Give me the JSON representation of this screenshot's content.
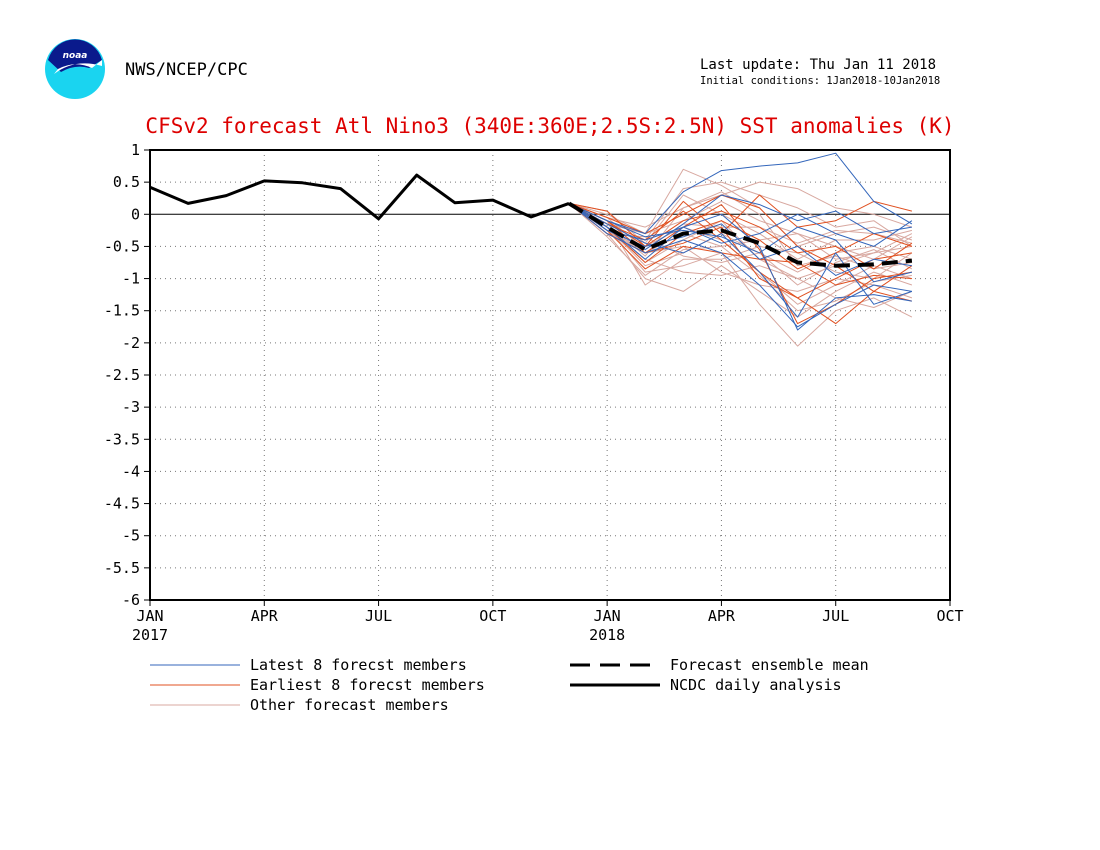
{
  "header": {
    "org": "NWS/NCEP/CPC",
    "last_update": "Last update: Thu Jan 11 2018",
    "initial_conditions": "Initial conditions: 1Jan2018-10Jan2018",
    "logo_text": "noaa"
  },
  "chart_data": {
    "type": "line",
    "title": "CFSv2 forecast Atl Nino3 (340E:360E;2.5S:2.5N) SST anomalies (K)",
    "xlabel": "",
    "ylabel": "",
    "ylim": [
      -6,
      1
    ],
    "yticks": [
      1,
      0.5,
      0,
      -0.5,
      -1,
      -1.5,
      -2,
      -2.5,
      -3,
      -3.5,
      -4,
      -4.5,
      -5,
      -5.5,
      -6
    ],
    "xlim": [
      "2017-01",
      "2018-10"
    ],
    "xticks": [
      {
        "label": "JAN",
        "sublabel": "2017",
        "month": 0
      },
      {
        "label": "APR",
        "sublabel": "",
        "month": 3
      },
      {
        "label": "JUL",
        "sublabel": "",
        "month": 6
      },
      {
        "label": "OCT",
        "sublabel": "",
        "month": 9
      },
      {
        "label": "JAN",
        "sublabel": "2018",
        "month": 12
      },
      {
        "label": "APR",
        "sublabel": "",
        "month": 15
      },
      {
        "label": "JUL",
        "sublabel": "",
        "month": 18
      },
      {
        "label": "OCT",
        "sublabel": "",
        "month": 21
      }
    ],
    "grid": true,
    "zero_line": true,
    "colors": {
      "latest": "#3366bb",
      "earliest": "#e05020",
      "other": "#d8a8a0",
      "mean": "#000000",
      "analysis": "#000000"
    },
    "analysis": {
      "name": "NCDC daily analysis",
      "points": [
        [
          0,
          0.42
        ],
        [
          1,
          0.17
        ],
        [
          2,
          0.29
        ],
        [
          3,
          0.52
        ],
        [
          4,
          0.49
        ],
        [
          5,
          0.4
        ],
        [
          6,
          -0.07
        ],
        [
          7,
          0.61
        ],
        [
          8,
          0.18
        ],
        [
          9,
          0.22
        ],
        [
          10,
          -0.04
        ],
        [
          11,
          0.17
        ]
      ]
    },
    "ensemble_mean": {
      "name": "Forecast ensemble mean",
      "points": [
        [
          11,
          0.17
        ],
        [
          12,
          -0.2
        ],
        [
          13,
          -0.55
        ],
        [
          14,
          -0.3
        ],
        [
          15,
          -0.25
        ],
        [
          16,
          -0.45
        ],
        [
          17,
          -0.75
        ],
        [
          18,
          -0.8
        ],
        [
          19,
          -0.78
        ],
        [
          20,
          -0.72
        ]
      ]
    },
    "latest_members": {
      "name": "Latest 8 forecst members",
      "start_month": 11,
      "values": [
        [
          0.17,
          -0.1,
          -0.3,
          0.35,
          0.68,
          0.75,
          0.8,
          0.95,
          0.2,
          -0.15
        ],
        [
          0.17,
          -0.2,
          -0.55,
          -0.15,
          0.3,
          0.15,
          -0.1,
          0.05,
          -0.3,
          -0.2
        ],
        [
          0.17,
          -0.3,
          -0.6,
          -0.4,
          -0.6,
          -1.1,
          -1.75,
          -1.4,
          -1.1,
          -1.2
        ],
        [
          0.17,
          -0.25,
          -0.4,
          -0.2,
          0.0,
          -0.5,
          -1.8,
          -1.3,
          -1.25,
          -1.35
        ],
        [
          0.17,
          -0.15,
          -0.45,
          -0.6,
          -0.3,
          -0.9,
          -1.6,
          -0.6,
          -1.4,
          -1.2
        ],
        [
          0.17,
          -0.2,
          -0.7,
          -0.2,
          -0.45,
          -0.3,
          0.0,
          -0.3,
          -0.5,
          -0.1
        ],
        [
          0.17,
          -0.25,
          -0.5,
          -0.35,
          -0.15,
          -0.7,
          -0.5,
          -0.95,
          -0.7,
          -0.8
        ],
        [
          0.17,
          -0.1,
          -0.35,
          -0.25,
          -0.35,
          -0.6,
          -0.2,
          -0.4,
          -1.05,
          -0.9
        ]
      ]
    },
    "earliest_members": {
      "name": "Earliest 8 forecst members",
      "start_month": 11,
      "values": [
        [
          0.17,
          0.05,
          -0.5,
          0.2,
          -0.3,
          0.3,
          -0.2,
          -0.1,
          0.2,
          0.05
        ],
        [
          0.17,
          -0.1,
          -0.6,
          -0.2,
          0.15,
          -0.55,
          -1.7,
          -1.4,
          -1.0,
          -0.9
        ],
        [
          0.17,
          -0.15,
          -0.4,
          0.05,
          -0.4,
          -0.9,
          -1.3,
          -1.0,
          -0.7,
          -0.6
        ],
        [
          0.17,
          -0.2,
          -0.75,
          -0.3,
          -0.1,
          -0.4,
          -0.85,
          -0.6,
          -0.3,
          -0.5
        ],
        [
          0.17,
          -0.05,
          -0.3,
          0.0,
          0.3,
          0.1,
          -0.5,
          -0.8,
          -1.2,
          -1.35
        ],
        [
          0.17,
          -0.25,
          -0.85,
          -0.5,
          -0.6,
          -0.7,
          -0.75,
          -1.1,
          -0.95,
          -1.0
        ],
        [
          0.17,
          -0.1,
          -0.5,
          -0.1,
          0.05,
          -0.2,
          -0.6,
          -0.5,
          -0.85,
          -0.45
        ],
        [
          0.17,
          -0.3,
          -0.6,
          -0.45,
          -0.2,
          -1.0,
          -1.3,
          -1.7,
          -1.2,
          -0.8
        ]
      ]
    },
    "other_members": {
      "name": "Other forecast members",
      "start_month": 11,
      "values": [
        [
          0.17,
          0.0,
          -0.3,
          0.7,
          0.45,
          0.1,
          -0.5,
          -0.3,
          -0.2,
          -0.4
        ],
        [
          0.17,
          -0.2,
          -0.9,
          -0.8,
          -0.6,
          -1.4,
          -2.05,
          -1.5,
          -1.3,
          -1.6
        ],
        [
          0.17,
          -0.3,
          -1.0,
          -1.2,
          -0.8,
          -1.2,
          -1.6,
          -1.2,
          -0.9,
          -1.1
        ],
        [
          0.17,
          -0.1,
          -0.6,
          -0.3,
          -0.5,
          -0.4,
          -0.3,
          -0.7,
          -0.6,
          -0.3
        ],
        [
          0.17,
          -0.15,
          -0.4,
          0.4,
          0.5,
          0.3,
          0.1,
          -0.2,
          -0.1,
          -0.5
        ],
        [
          0.17,
          -0.25,
          -0.7,
          -0.9,
          -0.95,
          -0.8,
          -1.0,
          -1.3,
          -1.45,
          -1.2
        ],
        [
          0.17,
          -0.05,
          -0.2,
          0.1,
          0.3,
          0.5,
          0.4,
          0.1,
          0.0,
          -0.2
        ],
        [
          0.17,
          -0.2,
          -0.8,
          -0.6,
          -0.3,
          -0.6,
          -0.9,
          -0.6,
          -0.5,
          -0.7
        ],
        [
          0.17,
          -0.3,
          -0.5,
          -0.2,
          -0.4,
          -0.9,
          -1.4,
          -1.1,
          -0.8,
          -1.0
        ],
        [
          0.17,
          -0.1,
          -1.1,
          -0.7,
          -0.7,
          -0.5,
          -0.6,
          -0.9,
          -1.0,
          -0.6
        ],
        [
          0.17,
          -0.15,
          -0.3,
          -0.1,
          0.2,
          -0.1,
          -0.3,
          -0.5,
          -0.7,
          -0.35
        ],
        [
          0.17,
          -0.25,
          -0.6,
          -0.5,
          -0.9,
          -1.1,
          -1.2,
          -1.0,
          -1.1,
          -1.3
        ],
        [
          0.17,
          0.05,
          -0.45,
          0.3,
          0.0,
          -0.3,
          -0.7,
          -0.4,
          -0.4,
          -0.25
        ],
        [
          0.17,
          -0.2,
          -0.75,
          -0.4,
          -0.1,
          -0.7,
          -1.0,
          -0.8,
          -0.6,
          -0.5
        ],
        [
          0.17,
          -0.35,
          -0.95,
          -0.55,
          -0.5,
          -0.95,
          -1.5,
          -1.35,
          -1.05,
          -0.95
        ],
        [
          0.17,
          -0.05,
          -0.55,
          -0.15,
          -0.2,
          -0.2,
          -0.45,
          -0.25,
          -0.3,
          -0.45
        ],
        [
          0.17,
          -0.15,
          -0.65,
          0.1,
          0.35,
          0.0,
          -0.8,
          -0.65,
          -0.85,
          -0.75
        ],
        [
          0.17,
          -0.3,
          -0.35,
          -0.65,
          -0.75,
          -0.6,
          -1.1,
          -0.75,
          -0.55,
          -0.85
        ]
      ]
    },
    "legend": {
      "placement": "bottom",
      "items": [
        {
          "key": "latest",
          "label": "Latest 8 forecst members",
          "style": "thin"
        },
        {
          "key": "mean",
          "label": "Forecast ensemble mean",
          "style": "dashed"
        },
        {
          "key": "earliest",
          "label": "Earliest 8 forecst members",
          "style": "thin"
        },
        {
          "key": "analysis",
          "label": "NCDC daily analysis",
          "style": "thick"
        },
        {
          "key": "other",
          "label": "Other forecast members",
          "style": "thin"
        }
      ]
    }
  }
}
